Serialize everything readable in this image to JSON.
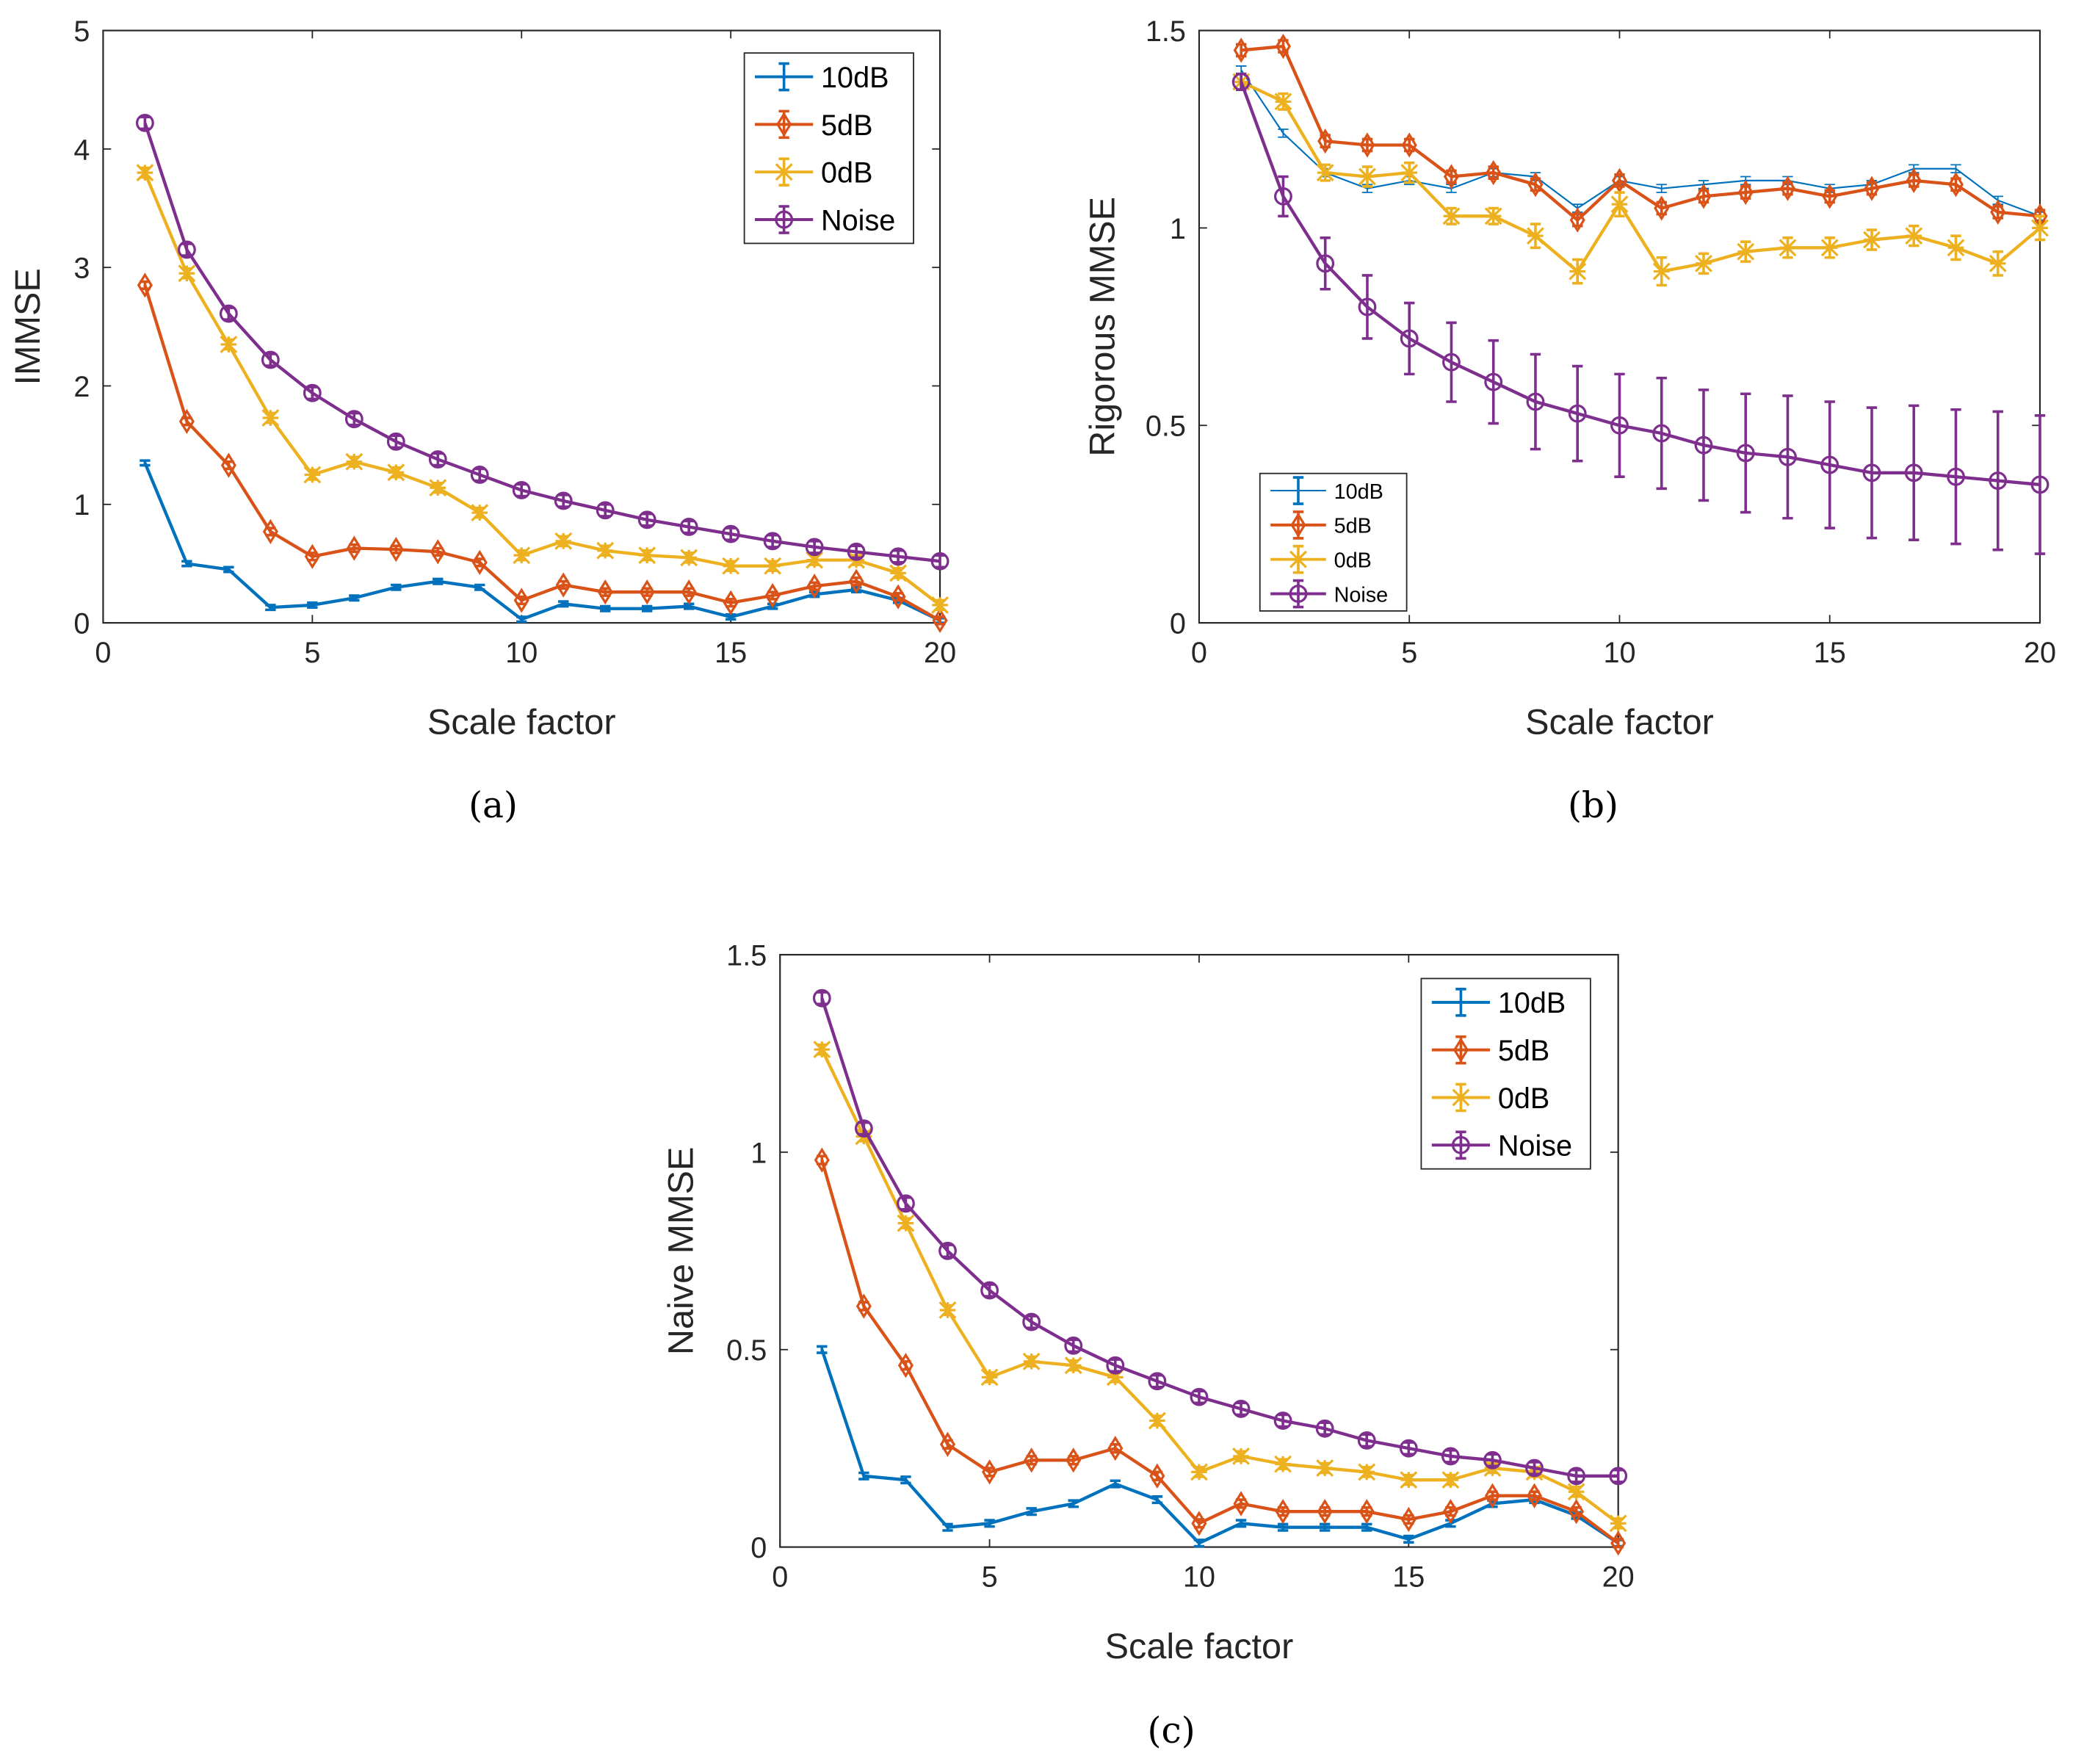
{
  "colors": {
    "10dB": "#0072BD",
    "5dB": "#D95319",
    "0dB": "#EDB120",
    "Noise": "#7E2F8E"
  },
  "chart_data": [
    {
      "type": "line",
      "caption": "(a)",
      "xlabel": "Scale factor",
      "ylabel": "IMMSE",
      "xlim": [
        0,
        20
      ],
      "ylim": [
        0,
        5
      ],
      "xticks": [
        "0",
        "5",
        "10",
        "15",
        "20"
      ],
      "yticks": [
        "0",
        "1",
        "2",
        "3",
        "4",
        "5"
      ],
      "legend_position": "top-right",
      "x": [
        1,
        2,
        3,
        4,
        5,
        6,
        7,
        8,
        9,
        10,
        11,
        12,
        13,
        14,
        15,
        16,
        17,
        18,
        19,
        20
      ],
      "series": [
        {
          "name": "10dB",
          "marker": "none",
          "values": [
            1.35,
            0.5,
            0.45,
            0.13,
            0.15,
            0.21,
            0.3,
            0.35,
            0.3,
            0.03,
            0.16,
            0.12,
            0.12,
            0.14,
            0.05,
            0.14,
            0.24,
            0.28,
            0.19,
            0.02
          ],
          "err": 0.02
        },
        {
          "name": "5dB",
          "marker": "diamond",
          "values": [
            2.85,
            1.7,
            1.33,
            0.77,
            0.56,
            0.63,
            0.62,
            0.6,
            0.51,
            0.19,
            0.32,
            0.26,
            0.26,
            0.26,
            0.17,
            0.23,
            0.31,
            0.35,
            0.22,
            0.02
          ],
          "err": 0.03
        },
        {
          "name": "0dB",
          "marker": "star",
          "values": [
            3.8,
            2.95,
            2.35,
            1.73,
            1.25,
            1.36,
            1.27,
            1.14,
            0.93,
            0.57,
            0.69,
            0.61,
            0.57,
            0.55,
            0.48,
            0.48,
            0.53,
            0.53,
            0.42,
            0.15
          ],
          "err": 0.04
        },
        {
          "name": "Noise",
          "marker": "circle",
          "values": [
            4.22,
            3.15,
            2.61,
            2.22,
            1.94,
            1.72,
            1.53,
            1.38,
            1.25,
            1.12,
            1.03,
            0.95,
            0.87,
            0.81,
            0.75,
            0.69,
            0.64,
            0.6,
            0.56,
            0.52
          ],
          "err": 0.05
        }
      ]
    },
    {
      "type": "line",
      "caption": "(b)",
      "xlabel": "Scale factor",
      "ylabel": "Rigorous MMSE",
      "xlim": [
        0,
        20
      ],
      "ylim": [
        0,
        1.5
      ],
      "xticks": [
        "0",
        "5",
        "10",
        "15",
        "20"
      ],
      "yticks": [
        "0",
        "0.5",
        "1",
        "1.5"
      ],
      "legend_position": "bottom-left",
      "x": [
        1,
        2,
        3,
        4,
        5,
        6,
        7,
        8,
        9,
        10,
        11,
        12,
        13,
        14,
        15,
        16,
        17,
        18,
        19,
        20
      ],
      "series": [
        {
          "name": "10dB",
          "marker": "none",
          "thin": true,
          "values": [
            1.4,
            1.24,
            1.14,
            1.1,
            1.12,
            1.1,
            1.14,
            1.13,
            1.05,
            1.12,
            1.1,
            1.11,
            1.12,
            1.12,
            1.1,
            1.11,
            1.15,
            1.15,
            1.07,
            1.03
          ],
          "err": 0.01
        },
        {
          "name": "5dB",
          "marker": "diamond",
          "values": [
            1.45,
            1.46,
            1.22,
            1.21,
            1.21,
            1.13,
            1.14,
            1.11,
            1.02,
            1.12,
            1.05,
            1.08,
            1.09,
            1.1,
            1.08,
            1.1,
            1.12,
            1.11,
            1.04,
            1.03
          ],
          "err": 0.015
        },
        {
          "name": "0dB",
          "marker": "star",
          "values": [
            1.37,
            1.32,
            1.14,
            1.13,
            1.14,
            1.03,
            1.03,
            0.98,
            0.89,
            1.06,
            0.89,
            0.91,
            0.94,
            0.95,
            0.95,
            0.97,
            0.98,
            0.95,
            0.91,
            1.0
          ],
          "err": [
            0.02,
            0.02,
            0.02,
            0.025,
            0.025,
            0.02,
            0.02,
            0.03,
            0.03,
            0.03,
            0.035,
            0.025,
            0.025,
            0.025,
            0.025,
            0.025,
            0.025,
            0.03,
            0.03,
            0.03
          ]
        },
        {
          "name": "Noise",
          "marker": "circle",
          "values": [
            1.37,
            1.08,
            0.91,
            0.8,
            0.72,
            0.66,
            0.61,
            0.56,
            0.53,
            0.5,
            0.48,
            0.45,
            0.43,
            0.42,
            0.4,
            0.38,
            0.38,
            0.37,
            0.36,
            0.35
          ],
          "err": [
            0.02,
            0.05,
            0.065,
            0.08,
            0.09,
            0.1,
            0.105,
            0.12,
            0.12,
            0.13,
            0.14,
            0.14,
            0.15,
            0.155,
            0.16,
            0.165,
            0.17,
            0.17,
            0.175,
            0.175
          ]
        }
      ]
    },
    {
      "type": "line",
      "caption": "(c)",
      "xlabel": "Scale factor",
      "ylabel": "Naive MMSE",
      "xlim": [
        0,
        20
      ],
      "ylim": [
        0,
        1.5
      ],
      "xticks": [
        "0",
        "5",
        "10",
        "15",
        "20"
      ],
      "yticks": [
        "0",
        "0.5",
        "1",
        "1.5"
      ],
      "legend_position": "top-right",
      "x": [
        1,
        2,
        3,
        4,
        5,
        6,
        7,
        8,
        9,
        10,
        11,
        12,
        13,
        14,
        15,
        16,
        17,
        18,
        19,
        20
      ],
      "series": [
        {
          "name": "10dB",
          "marker": "none",
          "values": [
            0.5,
            0.18,
            0.17,
            0.05,
            0.06,
            0.09,
            0.11,
            0.16,
            0.12,
            0.01,
            0.06,
            0.05,
            0.05,
            0.05,
            0.02,
            0.06,
            0.11,
            0.12,
            0.08,
            0.01
          ],
          "err": 0.008
        },
        {
          "name": "5dB",
          "marker": "diamond",
          "values": [
            0.98,
            0.61,
            0.46,
            0.26,
            0.19,
            0.22,
            0.22,
            0.25,
            0.18,
            0.06,
            0.11,
            0.09,
            0.09,
            0.09,
            0.07,
            0.09,
            0.13,
            0.13,
            0.09,
            0.01
          ],
          "err": 0.01
        },
        {
          "name": "0dB",
          "marker": "star",
          "values": [
            1.26,
            1.04,
            0.82,
            0.6,
            0.43,
            0.47,
            0.46,
            0.43,
            0.32,
            0.19,
            0.23,
            0.21,
            0.2,
            0.19,
            0.17,
            0.17,
            0.2,
            0.19,
            0.14,
            0.06
          ],
          "err": 0.012
        },
        {
          "name": "Noise",
          "marker": "circle",
          "values": [
            1.39,
            1.06,
            0.87,
            0.75,
            0.65,
            0.57,
            0.51,
            0.46,
            0.42,
            0.38,
            0.35,
            0.32,
            0.3,
            0.27,
            0.25,
            0.23,
            0.22,
            0.2,
            0.18,
            0.18
          ],
          "err": 0.015
        }
      ]
    }
  ]
}
